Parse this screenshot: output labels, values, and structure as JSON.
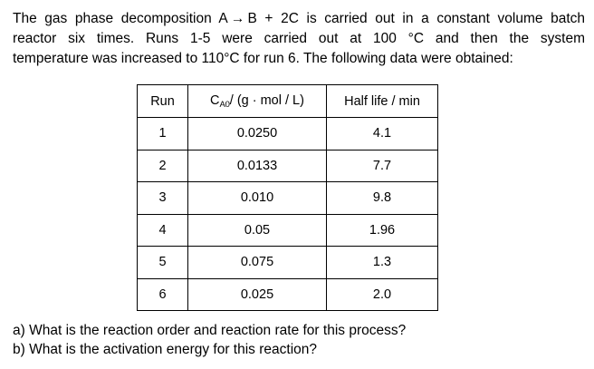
{
  "problem": {
    "line1": "The gas phase decomposition A → B + 2C is carried out in a constant volume batch",
    "line2": "reactor six times. Runs 1-5 were carried out at 100 °C and then the system",
    "line3": "temperature was increased to 110°C for run 6. The following data were obtained:"
  },
  "table": {
    "headers": {
      "run": "Run",
      "conc_prefix": "C",
      "conc_subscript": "A0",
      "conc_suffix": "/ (g · mol / L)",
      "half_life": "Half life / min"
    },
    "rows": [
      {
        "run": "1",
        "conc": "0.0250",
        "half_life": "4.1"
      },
      {
        "run": "2",
        "conc": "0.0133",
        "half_life": "7.7"
      },
      {
        "run": "3",
        "conc": "0.010",
        "half_life": "9.8"
      },
      {
        "run": "4",
        "conc": "0.05",
        "half_life": "1.96"
      },
      {
        "run": "5",
        "conc": "0.075",
        "half_life": "1.3"
      },
      {
        "run": "6",
        "conc": "0.025",
        "half_life": "2.0"
      }
    ]
  },
  "questions": {
    "a": "a)  What is the reaction order and reaction rate for this process?",
    "b": "b)  What is the activation energy for this reaction?"
  }
}
